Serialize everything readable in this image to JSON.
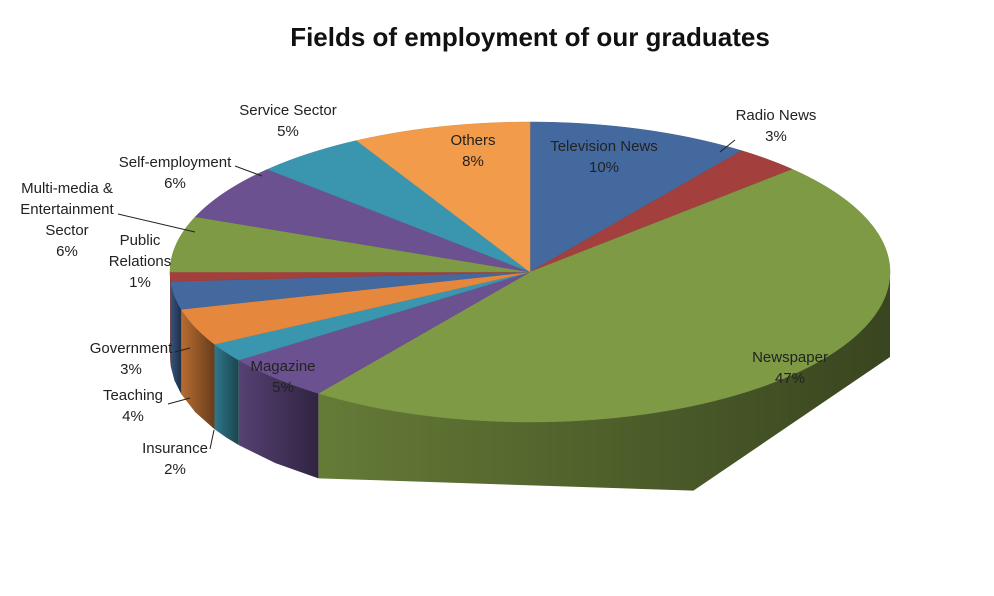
{
  "chart_data": {
    "type": "pie3d",
    "title": "Fields of employment of our graduates",
    "categories": [
      "Television News",
      "Radio News",
      "Newspaper",
      "Magazine",
      "Insurance",
      "Teaching",
      "Government",
      "Public Relations",
      "Multi-media & Entertainment Sector",
      "Self-employment",
      "Service Sector",
      "Others"
    ],
    "values": [
      10,
      3,
      47,
      5,
      2,
      4,
      3,
      1,
      6,
      6,
      5,
      8
    ],
    "value_labels": [
      "10%",
      "3%",
      "47%",
      "5%",
      "2%",
      "4%",
      "3%",
      "1%",
      "6%",
      "6%",
      "5%",
      "8%"
    ],
    "colors": [
      "#44699e",
      "#a33f3c",
      "#7e9a45",
      "#6b5190",
      "#3996ae",
      "#e5873c",
      "#44699e",
      "#a33f3c",
      "#7e9a45",
      "#6b5190",
      "#3996ae",
      "#f29b4b"
    ]
  }
}
